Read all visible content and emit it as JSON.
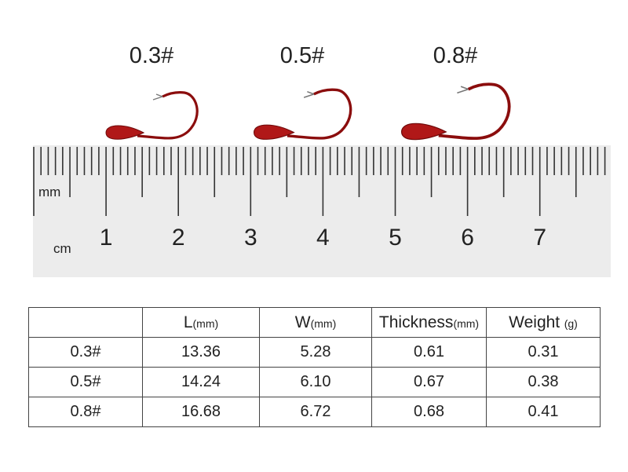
{
  "size_labels": [
    "0.3#",
    "0.5#",
    "0.8#"
  ],
  "ruler": {
    "mm_label": "mm",
    "cm_label": "cm",
    "numbers": [
      "1",
      "2",
      "3",
      "4",
      "5",
      "6",
      "7"
    ]
  },
  "table": {
    "header": [
      "",
      {
        "main": "L",
        "unit": "(mm)"
      },
      {
        "main": "W",
        "unit": "(mm)"
      },
      {
        "main": "Thickness",
        "unit": "(mm)"
      },
      {
        "main": "Weight",
        "unit": "(g)"
      }
    ],
    "rows": [
      [
        "0.3#",
        "13.36",
        "5.28",
        "0.61",
        "0.31"
      ],
      [
        "0.5#",
        "14.24",
        "6.10",
        "0.67",
        "0.38"
      ],
      [
        "0.8#",
        "16.68",
        "6.72",
        "0.68",
        "0.41"
      ]
    ]
  }
}
